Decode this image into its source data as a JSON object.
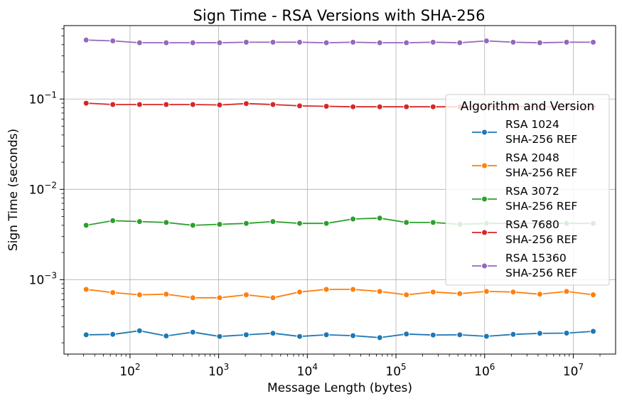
{
  "chart_data": {
    "type": "line",
    "title": "Sign Time - RSA Versions with SHA-256",
    "xlabel": "Message Length (bytes)",
    "ylabel": "Sign Time (seconds)",
    "x_scale": "log",
    "y_scale": "log",
    "xlim": [
      18,
      30000000
    ],
    "ylim": [
      0.00015,
      0.65
    ],
    "grid": true,
    "legend_title": "Algorithm and Version",
    "legend_position": "right",
    "x_ticks": [
      {
        "value": 100,
        "base": "10",
        "exp": "2"
      },
      {
        "value": 1000,
        "base": "10",
        "exp": "3"
      },
      {
        "value": 10000,
        "base": "10",
        "exp": "4"
      },
      {
        "value": 100000,
        "base": "10",
        "exp": "5"
      },
      {
        "value": 1000000,
        "base": "10",
        "exp": "6"
      },
      {
        "value": 10000000,
        "base": "10",
        "exp": "7"
      }
    ],
    "y_ticks": [
      {
        "value": 0.001,
        "base": "10",
        "exp": "−3"
      },
      {
        "value": 0.01,
        "base": "10",
        "exp": "−2"
      },
      {
        "value": 0.1,
        "base": "10",
        "exp": "−1"
      }
    ],
    "x": [
      32,
      64,
      128,
      256,
      512,
      1024,
      2048,
      4096,
      8192,
      16384,
      32768,
      65536,
      131072,
      262144,
      524288,
      1048576,
      2097152,
      4194304,
      8388608,
      16777216
    ],
    "series": [
      {
        "name_line1": "RSA 1024",
        "name_line2": "SHA-256 REF",
        "color": "#1f77b4",
        "values": [
          0.000245,
          0.000248,
          0.000272,
          0.000238,
          0.000262,
          0.000235,
          0.000245,
          0.000255,
          0.000235,
          0.000245,
          0.00024,
          0.000228,
          0.00025,
          0.000244,
          0.000245,
          0.000236,
          0.000248,
          0.000254,
          0.000256,
          0.000268
        ]
      },
      {
        "name_line1": "RSA 2048",
        "name_line2": "SHA-256 REF",
        "color": "#ff7f0e",
        "values": [
          0.00078,
          0.00072,
          0.00068,
          0.00069,
          0.00063,
          0.00063,
          0.00068,
          0.00063,
          0.00073,
          0.00078,
          0.00078,
          0.00074,
          0.00068,
          0.00073,
          0.0007,
          0.00074,
          0.00073,
          0.00069,
          0.00074,
          0.00068
        ]
      },
      {
        "name_line1": "RSA 3072",
        "name_line2": "SHA-256 REF",
        "color": "#2ca02c",
        "values": [
          0.004,
          0.0045,
          0.0044,
          0.0043,
          0.004,
          0.0041,
          0.0042,
          0.0044,
          0.0042,
          0.0042,
          0.0047,
          0.0048,
          0.0043,
          0.0043,
          0.0041,
          0.0042,
          0.0042,
          0.0042,
          0.0042,
          0.0042
        ]
      },
      {
        "name_line1": "RSA 7680",
        "name_line2": "SHA-256 REF",
        "color": "#d62728",
        "values": [
          0.09,
          0.087,
          0.087,
          0.087,
          0.087,
          0.086,
          0.089,
          0.087,
          0.084,
          0.083,
          0.082,
          0.082,
          0.082,
          0.082,
          0.082,
          0.082,
          0.082,
          0.082,
          0.082,
          0.082
        ]
      },
      {
        "name_line1": "RSA 15360",
        "name_line2": "SHA-256 REF",
        "color": "#9467bd",
        "values": [
          0.45,
          0.44,
          0.42,
          0.42,
          0.42,
          0.42,
          0.425,
          0.425,
          0.425,
          0.42,
          0.425,
          0.42,
          0.42,
          0.425,
          0.42,
          0.44,
          0.425,
          0.42,
          0.425,
          0.425
        ]
      }
    ]
  }
}
